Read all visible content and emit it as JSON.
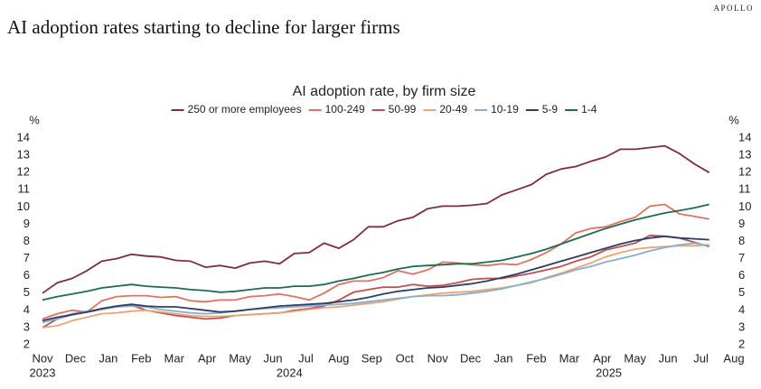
{
  "header": {
    "title": "AI adoption rates starting to decline for larger firms",
    "brand": "APOLLO"
  },
  "chart_data": {
    "type": "line",
    "title": "AI adoption rate, by firm size",
    "ylabel": "%",
    "y2label": "%",
    "x": [
      0,
      0.45,
      0.9,
      1.35,
      1.8,
      2.25,
      2.7,
      3.15,
      3.6,
      4.05,
      4.5,
      4.95,
      5.4,
      5.85,
      6.3,
      6.75,
      7.2,
      7.65,
      8.1,
      8.55,
      9,
      9.45,
      9.9,
      10.35,
      10.8,
      11.25,
      11.7,
      12.15,
      12.6,
      13.05,
      13.5,
      13.95,
      14.4,
      14.85,
      15.3,
      15.75,
      16.2,
      16.65,
      17.1,
      17.55,
      18,
      18.45,
      18.9,
      19.35,
      19.8,
      20.25
    ],
    "xlim": [
      0,
      21
    ],
    "xticks": [
      {
        "value": 0,
        "label": "Nov"
      },
      {
        "value": 1,
        "label": "Dec"
      },
      {
        "value": 2,
        "label": "Jan"
      },
      {
        "value": 3,
        "label": "Feb"
      },
      {
        "value": 4,
        "label": "Mar"
      },
      {
        "value": 5,
        "label": "Apr"
      },
      {
        "value": 6,
        "label": "May"
      },
      {
        "value": 7,
        "label": "Jun"
      },
      {
        "value": 8,
        "label": "Jul"
      },
      {
        "value": 9,
        "label": "Aug"
      },
      {
        "value": 10,
        "label": "Sep"
      },
      {
        "value": 11,
        "label": "Oct"
      },
      {
        "value": 12,
        "label": "Nov"
      },
      {
        "value": 13,
        "label": "Dec"
      },
      {
        "value": 14,
        "label": "Jan"
      },
      {
        "value": 15,
        "label": "Feb"
      },
      {
        "value": 16,
        "label": "Mar"
      },
      {
        "value": 17,
        "label": "Apr"
      },
      {
        "value": 18,
        "label": "May"
      },
      {
        "value": 19,
        "label": "Jun"
      },
      {
        "value": 20,
        "label": "Jul"
      },
      {
        "value": 21,
        "label": "Aug"
      }
    ],
    "year_labels": [
      {
        "value": 0,
        "label": "2023"
      },
      {
        "value": 7.5,
        "label": "2024"
      },
      {
        "value": 17.2,
        "label": "2025"
      }
    ],
    "ylim": [
      2,
      14
    ],
    "yticks": [
      2,
      3,
      4,
      5,
      6,
      7,
      8,
      9,
      10,
      11,
      12,
      13,
      14
    ],
    "y2lim": [
      2,
      14
    ],
    "y2ticks": [
      2,
      3,
      4,
      5,
      6,
      7,
      8,
      9,
      10,
      11,
      12,
      13,
      14
    ],
    "legend": "top",
    "series": [
      {
        "name": "250 or more employees",
        "color": "#7b2d43",
        "values": [
          5.0,
          5.6,
          5.85,
          6.3,
          6.85,
          7.0,
          7.25,
          7.15,
          7.1,
          6.9,
          6.85,
          6.5,
          6.6,
          6.45,
          6.75,
          6.85,
          6.7,
          7.3,
          7.35,
          7.9,
          7.6,
          8.1,
          8.85,
          8.85,
          9.2,
          9.4,
          9.9,
          10.05,
          10.05,
          10.1,
          10.2,
          10.7,
          11.0,
          11.3,
          11.9,
          12.2,
          12.35,
          12.65,
          12.9,
          13.35,
          13.35,
          13.45,
          13.55,
          13.1,
          12.5,
          12.0
        ]
      },
      {
        "name": "100-249",
        "color": "#e0735f",
        "values": [
          3.5,
          3.8,
          4.0,
          3.9,
          4.55,
          4.8,
          4.85,
          4.85,
          4.75,
          4.8,
          4.55,
          4.5,
          4.6,
          4.6,
          4.8,
          4.85,
          4.95,
          4.8,
          4.6,
          5.0,
          5.5,
          5.7,
          5.7,
          5.9,
          6.3,
          6.1,
          6.35,
          6.8,
          6.75,
          6.65,
          6.6,
          6.7,
          6.65,
          6.95,
          7.35,
          7.85,
          8.5,
          8.75,
          8.85,
          9.15,
          9.4,
          10.05,
          10.15,
          9.6,
          9.45,
          9.3
        ]
      },
      {
        "name": "50-99",
        "color": "#c0504d",
        "values": [
          3.0,
          3.5,
          3.75,
          3.9,
          4.05,
          4.2,
          4.3,
          4.0,
          3.85,
          3.7,
          3.6,
          3.5,
          3.55,
          3.7,
          3.75,
          3.8,
          3.85,
          4.0,
          4.1,
          4.25,
          4.6,
          5.05,
          5.2,
          5.35,
          5.35,
          5.5,
          5.4,
          5.45,
          5.6,
          5.8,
          5.85,
          5.85,
          6.0,
          6.15,
          6.35,
          6.55,
          6.85,
          7.1,
          7.5,
          7.7,
          7.9,
          8.35,
          8.3,
          8.2,
          7.95,
          7.7
        ]
      },
      {
        "name": "20-49",
        "color": "#e8a577",
        "values": [
          3.0,
          3.1,
          3.4,
          3.6,
          3.8,
          3.85,
          3.95,
          4.0,
          3.9,
          3.8,
          3.7,
          3.65,
          3.65,
          3.7,
          3.75,
          3.8,
          3.85,
          3.95,
          4.05,
          4.15,
          4.2,
          4.3,
          4.4,
          4.5,
          4.65,
          4.8,
          4.9,
          5.0,
          5.05,
          5.1,
          5.2,
          5.3,
          5.45,
          5.6,
          5.9,
          6.15,
          6.45,
          6.75,
          7.1,
          7.35,
          7.55,
          7.65,
          7.7,
          7.75,
          7.75,
          7.8
        ]
      },
      {
        "name": "10-19",
        "color": "#86aed3",
        "values": [
          3.3,
          3.5,
          3.8,
          3.95,
          4.05,
          4.2,
          4.25,
          4.2,
          4.05,
          3.95,
          3.85,
          3.8,
          3.85,
          3.95,
          4.05,
          4.1,
          4.15,
          4.2,
          4.25,
          4.3,
          4.35,
          4.4,
          4.5,
          4.6,
          4.7,
          4.8,
          4.85,
          4.85,
          4.9,
          5.0,
          5.1,
          5.25,
          5.45,
          5.65,
          5.85,
          6.1,
          6.35,
          6.55,
          6.8,
          7.0,
          7.2,
          7.45,
          7.65,
          7.8,
          7.9,
          7.75
        ]
      },
      {
        "name": "5-9",
        "color": "#2c3e60",
        "values": [
          3.4,
          3.6,
          3.75,
          3.9,
          4.1,
          4.25,
          4.35,
          4.25,
          4.2,
          4.2,
          4.1,
          4.0,
          3.9,
          3.95,
          4.05,
          4.15,
          4.25,
          4.3,
          4.35,
          4.4,
          4.5,
          4.6,
          4.75,
          4.95,
          5.1,
          5.2,
          5.3,
          5.35,
          5.45,
          5.55,
          5.7,
          5.9,
          6.1,
          6.35,
          6.6,
          6.85,
          7.1,
          7.35,
          7.6,
          7.85,
          8.05,
          8.2,
          8.3,
          8.2,
          8.15,
          8.1
        ]
      },
      {
        "name": "1-4",
        "color": "#1e6b52",
        "values": [
          4.6,
          4.8,
          4.95,
          5.1,
          5.3,
          5.4,
          5.5,
          5.4,
          5.35,
          5.3,
          5.2,
          5.15,
          5.05,
          5.1,
          5.2,
          5.3,
          5.3,
          5.4,
          5.4,
          5.5,
          5.7,
          5.85,
          6.05,
          6.2,
          6.4,
          6.55,
          6.6,
          6.65,
          6.7,
          6.7,
          6.8,
          6.9,
          7.1,
          7.3,
          7.55,
          7.85,
          8.15,
          8.45,
          8.75,
          9.0,
          9.25,
          9.45,
          9.65,
          9.8,
          9.95,
          10.15
        ]
      }
    ]
  }
}
